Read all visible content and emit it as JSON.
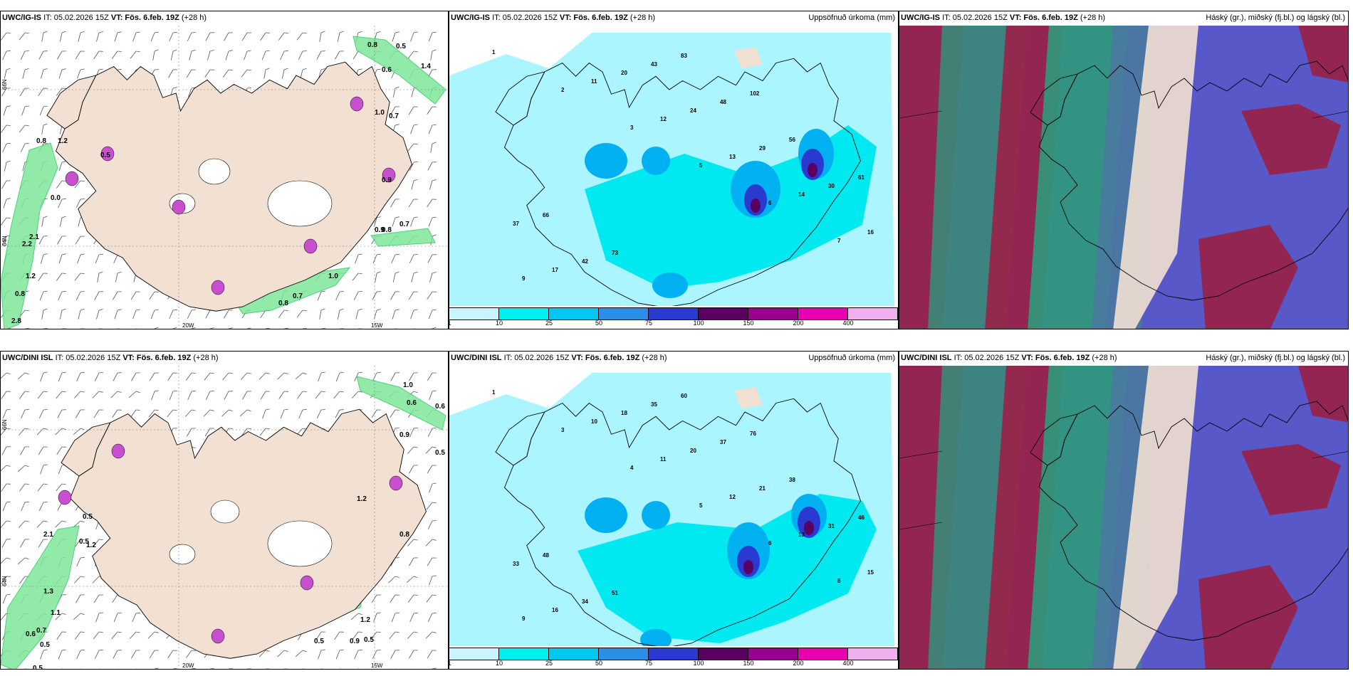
{
  "panels": [
    {
      "model": "UWC/IG-IS",
      "it": "IT: 05.02.2026 15Z",
      "vt": "VT: Fös. 6.feb. 19Z",
      "lead": "(+28 h)"
    },
    {
      "model": "UWC/IG-IS",
      "it": "IT: 05.02.2026 15Z",
      "vt": "VT: Fös. 6.feb. 19Z",
      "lead": "(+28 h)",
      "right": "Uppsöfnuð úrkoma (mm)"
    },
    {
      "model": "UWC/IG-IS",
      "it": "IT: 05.02.2026 15Z",
      "vt": "VT: Fös. 6.feb. 19Z",
      "lead": "(+28 h)",
      "right": "Háský (gr.), miðský (fj.bl.) og lágský (bl.)"
    },
    {
      "model": "UWC/DINI ISL",
      "it": "IT: 05.02.2026 15Z",
      "vt": "VT: Fös. 6.feb. 19Z",
      "lead": "(+28 h)"
    },
    {
      "model": "UWC/DINI ISL",
      "it": "IT: 05.02.2026 15Z",
      "vt": "VT: Fös. 6.feb. 19Z",
      "lead": "(+28 h)",
      "right": "Uppsöfnuð úrkoma (mm)"
    },
    {
      "model": "UWC/DINI ISL",
      "it": "IT: 05.02.2026 15Z",
      "vt": "VT: Fös. 6.feb. 19Z",
      "lead": "(+28 h)",
      "right": "Háský (gr.), miðský (fj.bl.) og lágský (bl.)"
    }
  ],
  "axes": {
    "lon1": "20W",
    "lon2": "15W",
    "lat1": "66N",
    "lat2": "64N"
  },
  "colorbar": {
    "labels": [
      "1",
      "10",
      "25",
      "50",
      "75",
      "100",
      "150",
      "200",
      "400"
    ],
    "colors": [
      "#c8f5ff",
      "#00f0f0",
      "#00c8f0",
      "#2b8ee8",
      "#2a3ad0",
      "#5a0060",
      "#9a0090",
      "#e800b0",
      "#f0b0f0"
    ]
  },
  "colors": {
    "land": "#f2e1d2",
    "sea": "#ffffff",
    "green": "#32c864",
    "precip1": "#aaf5ff",
    "precip2": "#00e8f0",
    "cloudBlue": "#5858c8",
    "cloudRed": "#9a2046",
    "cloudGreen": "#2a8070"
  },
  "wind_labels_top": [
    "0.8",
    "0.5",
    "0.6",
    "1.4",
    "1.0",
    "0.7",
    "0.9",
    "0.8",
    "0.8",
    "1.2",
    "0.5",
    "0.0",
    "2.1",
    "2.2",
    "1.2",
    "0.8",
    "2.8",
    "0.9",
    "0.7",
    "1.0",
    "0.8",
    "0.7"
  ],
  "wind_labels_bottom": [
    "1.0",
    "0.6",
    "0.6",
    "0.9",
    "0.5",
    "1.2",
    "0.8",
    "0.5",
    "2.1",
    "1.2",
    "0.5",
    "1.3",
    "1.1",
    "0.7",
    "0.6",
    "0.5",
    "0.5",
    "1.2",
    "0.9",
    "0.5",
    "0.5"
  ],
  "precip_labels_top": [
    "1",
    "2",
    "3",
    "5",
    "6",
    "7",
    "9",
    "11",
    "12",
    "13",
    "14",
    "16",
    "17",
    "20",
    "24",
    "29",
    "30",
    "37",
    "42",
    "43",
    "48",
    "56",
    "61",
    "66",
    "73",
    "83",
    "102"
  ],
  "precip_labels_bottom": [
    "1",
    "3",
    "4",
    "5",
    "6",
    "8",
    "9",
    "10",
    "11",
    "12",
    "13",
    "15",
    "16",
    "18",
    "20",
    "21",
    "31",
    "33",
    "34",
    "35",
    "37",
    "38",
    "46",
    "48",
    "51",
    "60",
    "76"
  ]
}
